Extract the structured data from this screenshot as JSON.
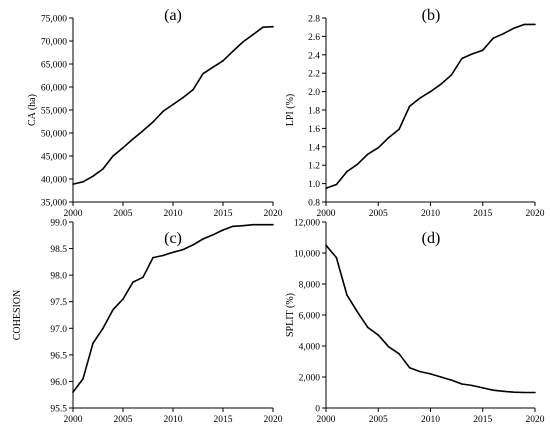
{
  "colors": {
    "line": "#000000",
    "axis": "#000000",
    "background": "#ffffff"
  },
  "chart_data": [
    {
      "type": "line",
      "panel_label": "(a)",
      "ylabel": "CA (ha)",
      "xlabel": "",
      "xlim": [
        2000,
        2020
      ],
      "ylim": [
        35000,
        75000
      ],
      "x_ticks": [
        2000,
        2005,
        2010,
        2015,
        2020
      ],
      "y_ticks": [
        35000,
        40000,
        45000,
        50000,
        55000,
        60000,
        65000,
        70000,
        75000
      ],
      "y_tick_labels": [
        "35,000",
        "40,000",
        "45,000",
        "50,000",
        "55,000",
        "60,000",
        "65,000",
        "70,000",
        "75,000"
      ],
      "x": [
        2000,
        2001,
        2002,
        2003,
        2004,
        2005,
        2006,
        2007,
        2008,
        2009,
        2010,
        2011,
        2012,
        2013,
        2014,
        2015,
        2016,
        2017,
        2018,
        2019,
        2020
      ],
      "series": [
        {
          "values": [
            38900,
            39400,
            40600,
            42200,
            45000,
            46800,
            48700,
            50500,
            52400,
            54700,
            56200,
            57700,
            59400,
            62900,
            64300,
            65700,
            67800,
            69800,
            71400,
            73000,
            73100
          ]
        }
      ]
    },
    {
      "type": "line",
      "panel_label": "(b)",
      "ylabel": "LPI (%)",
      "xlabel": "",
      "xlim": [
        2000,
        2020
      ],
      "ylim": [
        0.8,
        2.8
      ],
      "x_ticks": [
        2000,
        2005,
        2010,
        2015,
        2020
      ],
      "y_ticks": [
        0.8,
        1.0,
        1.2,
        1.4,
        1.6,
        1.8,
        2.0,
        2.2,
        2.4,
        2.6,
        2.8
      ],
      "y_tick_labels": [
        "0.8",
        "1.0",
        "1.2",
        "1.4",
        "1.6",
        "1.8",
        "2.0",
        "2.2",
        "2.4",
        "2.6",
        "2.8"
      ],
      "x": [
        2000,
        2001,
        2002,
        2003,
        2004,
        2005,
        2006,
        2007,
        2008,
        2009,
        2010,
        2011,
        2012,
        2013,
        2014,
        2015,
        2016,
        2017,
        2018,
        2019,
        2020
      ],
      "series": [
        {
          "values": [
            0.95,
            0.99,
            1.13,
            1.21,
            1.32,
            1.39,
            1.5,
            1.59,
            1.84,
            1.93,
            2.0,
            2.08,
            2.18,
            2.36,
            2.41,
            2.45,
            2.58,
            2.63,
            2.69,
            2.73,
            2.73
          ]
        }
      ]
    },
    {
      "type": "line",
      "panel_label": "(c)",
      "ylabel": "COHESION",
      "xlabel": "",
      "xlim": [
        2000,
        2020
      ],
      "ylim": [
        95.5,
        99.0
      ],
      "x_ticks": [
        2000,
        2005,
        2010,
        2015,
        2020
      ],
      "y_ticks": [
        95.5,
        96.0,
        96.5,
        97.0,
        97.5,
        98.0,
        98.5,
        99.0
      ],
      "y_tick_labels": [
        "95.5",
        "96.0",
        "96.5",
        "97.0",
        "97.5",
        "98.0",
        "98.5",
        "99.0"
      ],
      "x": [
        2000,
        2001,
        2002,
        2003,
        2004,
        2005,
        2006,
        2007,
        2008,
        2009,
        2010,
        2011,
        2012,
        2013,
        2014,
        2015,
        2016,
        2017,
        2018,
        2019,
        2020
      ],
      "series": [
        {
          "values": [
            95.8,
            96.05,
            96.72,
            97.0,
            97.35,
            97.55,
            97.87,
            97.96,
            98.33,
            98.37,
            98.43,
            98.48,
            98.57,
            98.68,
            98.76,
            98.85,
            98.92,
            98.93,
            98.95,
            98.95,
            98.95
          ]
        }
      ]
    },
    {
      "type": "line",
      "panel_label": "(d)",
      "ylabel": "SPLIT (%)",
      "xlabel": "",
      "xlim": [
        2000,
        2020
      ],
      "ylim": [
        0,
        12000
      ],
      "x_ticks": [
        2000,
        2005,
        2010,
        2015,
        2020
      ],
      "y_ticks": [
        0,
        2000,
        4000,
        6000,
        8000,
        10000,
        12000
      ],
      "y_tick_labels": [
        "0",
        "2,000",
        "4,000",
        "6,000",
        "8,000",
        "10,000",
        "12,000"
      ],
      "x": [
        2000,
        2001,
        2002,
        2003,
        2004,
        2005,
        2006,
        2007,
        2008,
        2009,
        2010,
        2011,
        2012,
        2013,
        2014,
        2015,
        2016,
        2017,
        2018,
        2019,
        2020
      ],
      "series": [
        {
          "values": [
            10500,
            9700,
            7300,
            6200,
            5200,
            4700,
            3950,
            3500,
            2600,
            2350,
            2200,
            2000,
            1800,
            1550,
            1450,
            1300,
            1150,
            1080,
            1020,
            1000,
            1000
          ]
        }
      ]
    }
  ]
}
